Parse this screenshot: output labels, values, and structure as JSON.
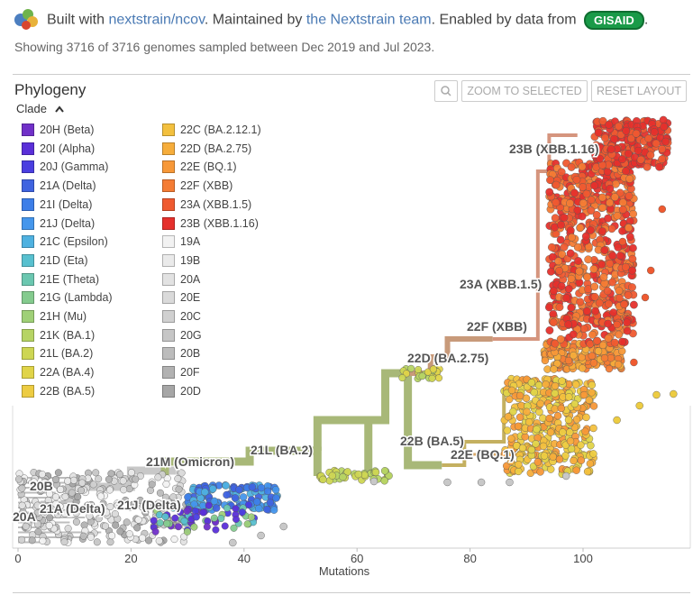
{
  "header": {
    "built_with": "Built with ",
    "built_link": "nextstrain/ncov",
    "maintained_by": ". Maintained by ",
    "team_link": "the Nextstrain team",
    "enabled_by": ". Enabled by data from ",
    "gisaid": "GISAID",
    "end": "."
  },
  "summary": "Showing 3716 of 3716 genomes sampled between Dec 2019 and Jul 2023.",
  "panel": {
    "title": "Phylogeny",
    "zoom_label": "ZOOM TO SELECTED",
    "reset_label": "RESET LAYOUT",
    "clade_label": "Clade"
  },
  "legend": {
    "items": [
      {
        "label": "20H (Beta)",
        "color": "#7030c8"
      },
      {
        "label": "20I (Alpha)",
        "color": "#5a2fd8"
      },
      {
        "label": "20J (Gamma)",
        "color": "#4a3ee0"
      },
      {
        "label": "21A (Delta)",
        "color": "#3f63e0"
      },
      {
        "label": "21I (Delta)",
        "color": "#3d7ee8"
      },
      {
        "label": "21J (Delta)",
        "color": "#4596ec"
      },
      {
        "label": "21C (Epsilon)",
        "color": "#4fb1e0"
      },
      {
        "label": "21D (Eta)",
        "color": "#58c0cf"
      },
      {
        "label": "21E (Theta)",
        "color": "#6bc7b0"
      },
      {
        "label": "21G (Lambda)",
        "color": "#84cb8e"
      },
      {
        "label": "21H (Mu)",
        "color": "#9fd077"
      },
      {
        "label": "21K (BA.1)",
        "color": "#b6d464"
      },
      {
        "label": "21L (BA.2)",
        "color": "#cdd653"
      },
      {
        "label": "22A (BA.4)",
        "color": "#e0d448"
      },
      {
        "label": "22B (BA.5)",
        "color": "#edcc42"
      },
      {
        "label": "22C (BA.2.12.1)",
        "color": "#f3c03e"
      },
      {
        "label": "22D (BA.2.75)",
        "color": "#f6ad3b"
      },
      {
        "label": "22E (BQ.1)",
        "color": "#f79838"
      },
      {
        "label": "22F (XBB)",
        "color": "#f47c34"
      },
      {
        "label": "23A (XBB.1.5)",
        "color": "#ef5a30"
      },
      {
        "label": "23B (XBB.1.16)",
        "color": "#e5302c"
      },
      {
        "label": "19A",
        "color": "#f2f2f2"
      },
      {
        "label": "19B",
        "color": "#eaeaea"
      },
      {
        "label": "20A",
        "color": "#e2e2e2"
      },
      {
        "label": "20E",
        "color": "#dadada"
      },
      {
        "label": "20C",
        "color": "#d0d0d0"
      },
      {
        "label": "20G",
        "color": "#c6c6c6"
      },
      {
        "label": "20B",
        "color": "#bcbcbc"
      },
      {
        "label": "20F",
        "color": "#b2b2b2"
      },
      {
        "label": "20D",
        "color": "#a6a6a6"
      }
    ]
  },
  "tree_labels": [
    {
      "label": "23B (XBB.1.16)"
    },
    {
      "label": "23A (XBB.1.5)"
    },
    {
      "label": "22F (XBB)"
    },
    {
      "label": "22D (BA.2.75)"
    },
    {
      "label": "22B (BA.5)"
    },
    {
      "label": "22E (BQ.1)"
    },
    {
      "label": "21L (BA.2)"
    },
    {
      "label": "21M (Omicron)"
    },
    {
      "label": "20B"
    },
    {
      "label": "21A (Delta)"
    },
    {
      "label": "21J (Delta)"
    },
    {
      "label": "20A"
    }
  ],
  "axis": {
    "label": "Mutations",
    "ticks": [
      "0",
      "20",
      "40",
      "60",
      "80",
      "100"
    ]
  }
}
